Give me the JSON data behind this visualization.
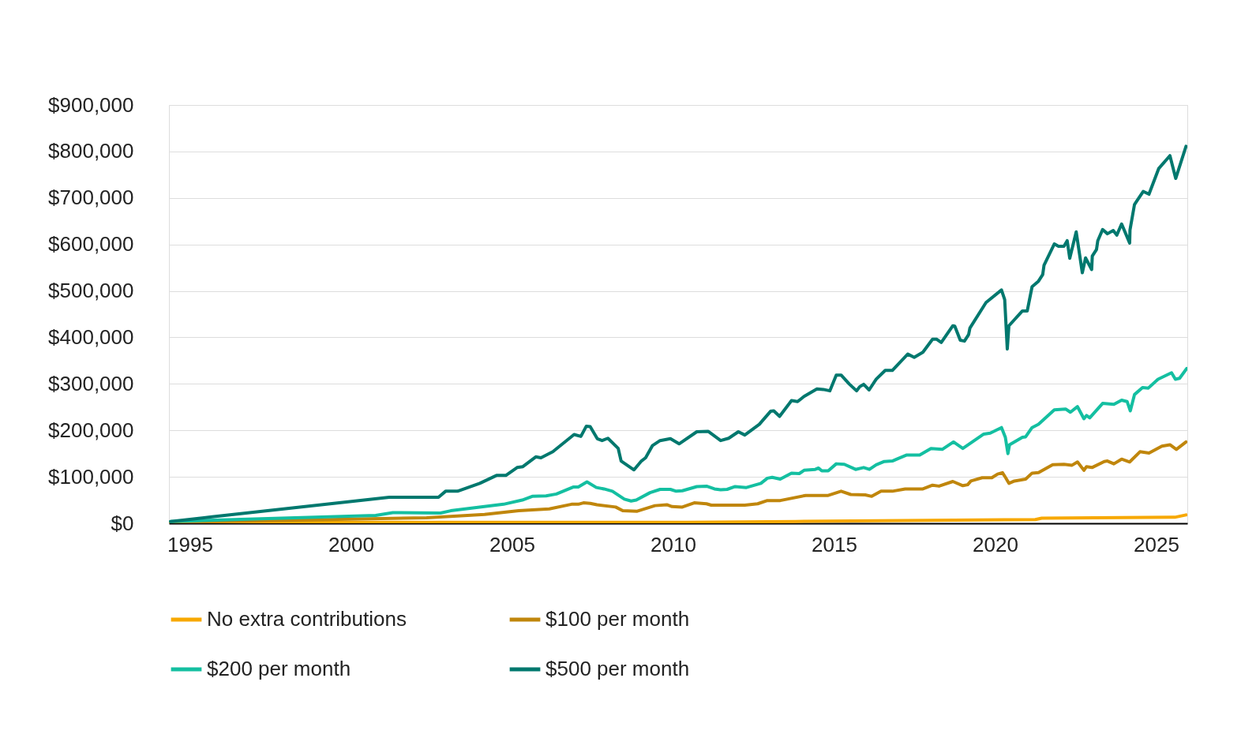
{
  "chart_data": {
    "type": "line",
    "xlim": [
      1994.35,
      2025.97
    ],
    "xticks": [
      1995,
      2000,
      2005,
      2010,
      2015,
      2020,
      2025
    ],
    "ylim": [
      0,
      900000
    ],
    "yticks": [
      {
        "value": 0,
        "label": "$0"
      },
      {
        "value": 100000,
        "label": "$100,000"
      },
      {
        "value": 200000,
        "label": "$200,000"
      },
      {
        "value": 300000,
        "label": "$300,000"
      },
      {
        "value": 400000,
        "label": "$400,000"
      },
      {
        "value": 500000,
        "label": "$500,000"
      },
      {
        "value": 600000,
        "label": "$600,000"
      },
      {
        "value": 700000,
        "label": "$700,000"
      },
      {
        "value": 800000,
        "label": "$800,000"
      },
      {
        "value": 900000,
        "label": "$900,000"
      }
    ],
    "grid": "y",
    "legend": "bottom",
    "line_style": "solid",
    "marker": "none",
    "series": [
      {
        "name": "No extra contributions",
        "color": "#f7a800",
        "x": [
          1994.4,
          2010.44,
          2013.8,
          2021.25,
          2021.45,
          2025.58,
          2025.93
        ],
        "values": [
          2000,
          2000,
          4000,
          8000,
          11000,
          13000,
          18000
        ]
      },
      {
        "name": "$100 per month",
        "color": "#c0860c",
        "x": [
          1994.4,
          2002.35,
          2004.15,
          2005.21,
          2006.16,
          2006.85,
          2007.06,
          2007.22,
          2007.43,
          2007.64,
          2008.22,
          2008.44,
          2008.89,
          2009.44,
          2009.81,
          2009.97,
          2010.29,
          2010.66,
          2011.04,
          2011.19,
          2012.23,
          2012.63,
          2012.93,
          2013.33,
          2014.12,
          2014.82,
          2015.22,
          2015.52,
          2015.97,
          2016.17,
          2016.46,
          2016.81,
          2017.21,
          2017.76,
          2018.06,
          2018.26,
          2018.69,
          2019.0,
          2019.15,
          2019.25,
          2019.6,
          2019.9,
          2020.08,
          2020.23,
          2020.33,
          2020.43,
          2020.6,
          2020.95,
          2021.15,
          2021.35,
          2021.79,
          2022.14,
          2022.39,
          2022.56,
          2022.76,
          2022.84,
          2023.01,
          2023.39,
          2023.49,
          2023.69,
          2023.93,
          2024.18,
          2024.5,
          2024.78,
          2025.18,
          2025.43,
          2025.63,
          2025.93
        ],
        "values": [
          2000,
          12000,
          19000,
          27000,
          31000,
          41000,
          41000,
          44000,
          43000,
          40000,
          35000,
          27000,
          26000,
          38000,
          40000,
          36000,
          35000,
          44000,
          42000,
          39000,
          39000,
          42000,
          49000,
          49000,
          60000,
          60000,
          69000,
          62000,
          61000,
          58000,
          69000,
          69000,
          74000,
          74000,
          82000,
          80000,
          90000,
          81000,
          83000,
          91000,
          98000,
          98000,
          106000,
          109000,
          98000,
          86000,
          91000,
          95000,
          108000,
          109000,
          126000,
          127000,
          125000,
          132000,
          114000,
          122000,
          120000,
          133000,
          134000,
          128000,
          138000,
          132000,
          154000,
          151000,
          166000,
          169000,
          159000,
          175000
        ]
      },
      {
        "name": "$200 per month",
        "color": "#14bfa1",
        "x": [
          1994.4,
          2000.77,
          2001.3,
          2002.78,
          2003.1,
          2004.74,
          2005.32,
          2005.63,
          2006.06,
          2006.38,
          2006.9,
          2007.06,
          2007.33,
          2007.62,
          2007.86,
          2008.12,
          2008.49,
          2008.7,
          2008.86,
          2009.29,
          2009.6,
          2009.92,
          2010.1,
          2010.29,
          2010.74,
          2011.04,
          2011.29,
          2011.48,
          2011.68,
          2011.93,
          2012.28,
          2012.73,
          2012.93,
          2013.08,
          2013.33,
          2013.68,
          2013.92,
          2014.07,
          2014.42,
          2014.52,
          2014.62,
          2014.82,
          2015.07,
          2015.32,
          2015.67,
          2015.92,
          2016.1,
          2016.31,
          2016.56,
          2016.81,
          2017.01,
          2017.26,
          2017.66,
          2018.01,
          2018.36,
          2018.71,
          2019.0,
          2019.65,
          2019.85,
          2020.2,
          2020.32,
          2020.4,
          2020.45,
          2020.85,
          2020.95,
          2021.15,
          2021.35,
          2021.84,
          2022.19,
          2022.34,
          2022.56,
          2022.76,
          2022.84,
          2022.94,
          2023.34,
          2023.69,
          2023.93,
          2024.1,
          2024.2,
          2024.33,
          2024.58,
          2024.76,
          2025.06,
          2025.48,
          2025.6,
          2025.73,
          2025.95
        ],
        "values": [
          4000,
          17000,
          23000,
          22000,
          27000,
          41000,
          50000,
          58000,
          59000,
          63000,
          78000,
          78000,
          89000,
          77000,
          74000,
          69000,
          52000,
          48000,
          50000,
          66000,
          73000,
          73000,
          69000,
          70000,
          79000,
          80000,
          74000,
          72000,
          73000,
          79000,
          77000,
          86000,
          97000,
          99000,
          95000,
          108000,
          107000,
          114000,
          116000,
          119000,
          113000,
          113000,
          128000,
          127000,
          116000,
          120000,
          116000,
          126000,
          133000,
          134000,
          140000,
          147000,
          147000,
          161000,
          159000,
          175000,
          161000,
          192000,
          194000,
          206000,
          185000,
          150000,
          169000,
          185000,
          186000,
          206000,
          213000,
          244000,
          246000,
          239000,
          251000,
          225000,
          232000,
          227000,
          258000,
          256000,
          265000,
          262000,
          242000,
          277000,
          292000,
          291000,
          310000,
          324000,
          310000,
          312000,
          333000
        ]
      },
      {
        "name": "$500 per month",
        "color": "#00786e",
        "x": [
          1994.4,
          1995.69,
          2001.19,
          2002.72,
          2002.94,
          2003.31,
          2004.0,
          2004.52,
          2004.81,
          2005.16,
          2005.34,
          2005.74,
          2005.9,
          2006.27,
          2006.93,
          2007.14,
          2007.31,
          2007.43,
          2007.65,
          2007.8,
          2007.98,
          2008.3,
          2008.39,
          2008.79,
          2009.02,
          2009.15,
          2009.36,
          2009.6,
          2009.92,
          2010.19,
          2010.74,
          2011.09,
          2011.48,
          2011.73,
          2012.03,
          2012.23,
          2012.68,
          2013.03,
          2013.13,
          2013.31,
          2013.68,
          2013.87,
          2014.07,
          2014.47,
          2014.67,
          2014.87,
          2015.07,
          2015.22,
          2015.47,
          2015.7,
          2015.8,
          2015.92,
          2016.09,
          2016.31,
          2016.59,
          2016.81,
          2017.29,
          2017.49,
          2017.76,
          2018.06,
          2018.19,
          2018.33,
          2018.69,
          2018.75,
          2018.92,
          2019.05,
          2019.18,
          2019.22,
          2019.72,
          2020.2,
          2020.3,
          2020.38,
          2020.43,
          2020.85,
          2021.0,
          2021.15,
          2021.35,
          2021.48,
          2021.52,
          2021.84,
          2021.97,
          2022.14,
          2022.24,
          2022.32,
          2022.52,
          2022.71,
          2022.81,
          2023.0,
          2023.02,
          2023.15,
          2023.19,
          2023.34,
          2023.49,
          2023.67,
          2023.78,
          2023.93,
          2024.18,
          2024.19,
          2024.33,
          2024.6,
          2024.78,
          2025.08,
          2025.43,
          2025.61,
          2025.93
        ],
        "values": [
          4000,
          14000,
          56000,
          56000,
          69000,
          69000,
          86000,
          103000,
          103000,
          120000,
          122000,
          143000,
          141000,
          154000,
          191000,
          187000,
          209000,
          208000,
          182000,
          178000,
          183000,
          161000,
          134000,
          115000,
          134000,
          141000,
          167000,
          178000,
          182000,
          171000,
          197000,
          198000,
          178000,
          183000,
          197000,
          190000,
          213000,
          241000,
          242000,
          230000,
          264000,
          262000,
          273000,
          289000,
          288000,
          285000,
          319000,
          319000,
          300000,
          285000,
          294000,
          299000,
          287000,
          310000,
          329000,
          329000,
          364000,
          357000,
          368000,
          396000,
          396000,
          389000,
          425000,
          424000,
          394000,
          392000,
          406000,
          420000,
          475000,
          502000,
          481000,
          375000,
          425000,
          457000,
          457000,
          509000,
          521000,
          535000,
          555000,
          601000,
          596000,
          596000,
          608000,
          570000,
          627000,
          539000,
          571000,
          546000,
          575000,
          589000,
          608000,
          632000,
          623000,
          630000,
          620000,
          644000,
          603000,
          631000,
          686000,
          714000,
          708000,
          763000,
          791000,
          742000,
          811000
        ]
      }
    ]
  }
}
